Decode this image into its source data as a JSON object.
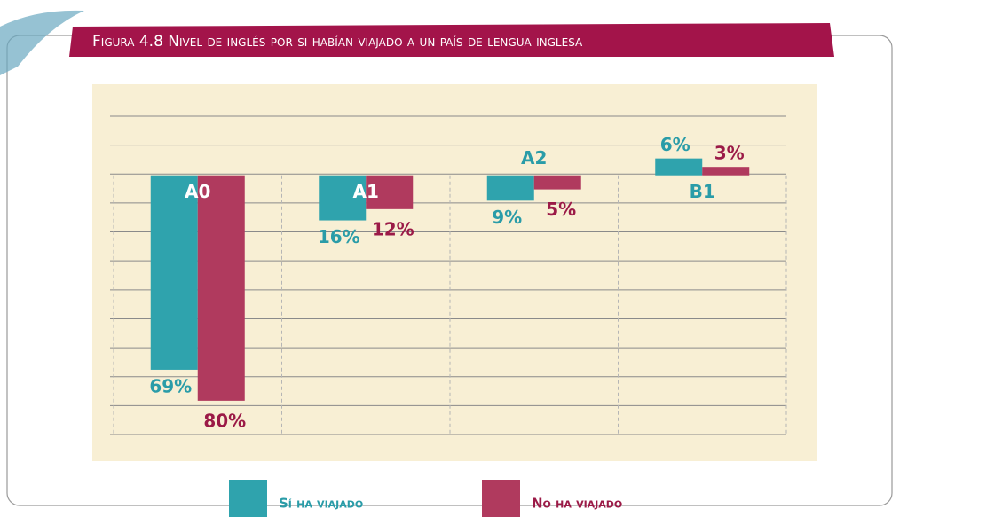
{
  "chart_data": {
    "type": "bar",
    "title": "Figura 4.8 Nivel de inglés por si habían viajado a un país de lengua inglesa",
    "categories": [
      "A0",
      "A1",
      "A2",
      "B1"
    ],
    "series": [
      {
        "name": "Sí ha viajado",
        "color": "#2fa3ad",
        "values": [
          -69,
          -16,
          -9,
          6
        ],
        "value_labels": [
          "69%",
          "16%",
          "9%",
          "6%"
        ]
      },
      {
        "name": "No ha viajado",
        "color": "#b03a5e",
        "values": [
          -80,
          -12,
          -5,
          3
        ],
        "value_labels": [
          "80%",
          "12%",
          "5%",
          "3%"
        ]
      }
    ],
    "ylim": [
      -92,
      21
    ]
  }
}
